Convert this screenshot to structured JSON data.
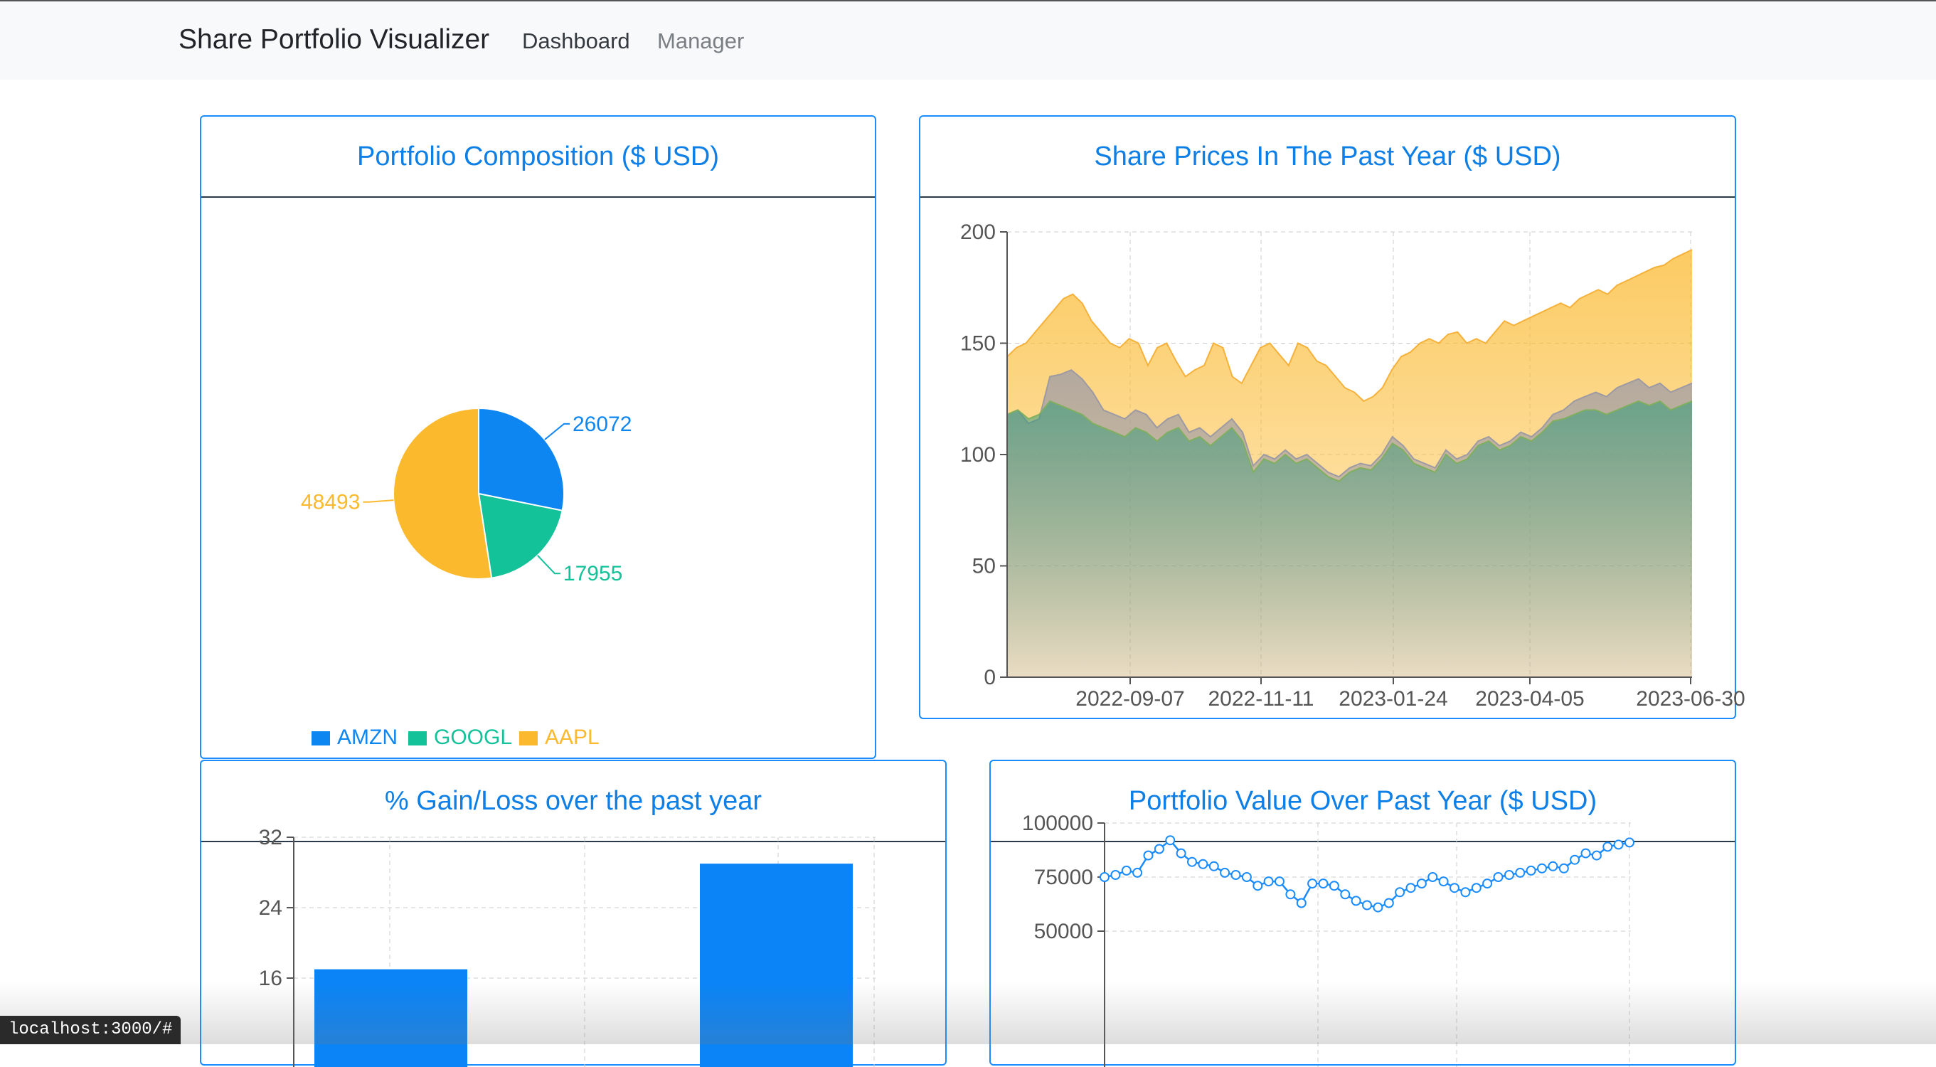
{
  "nav": {
    "brand": "Share Portfolio Visualizer",
    "links": [
      "Dashboard",
      "Manager"
    ]
  },
  "cards": {
    "composition": {
      "title": "Portfolio Composition ($ USD)"
    },
    "prices": {
      "title": "Share Prices In The Past Year ($ USD)"
    },
    "gain": {
      "title": "% Gain/Loss over the past year"
    },
    "value": {
      "title": "Portfolio Value Over Past Year ($ USD)"
    }
  },
  "status_url": "localhost:3000/#",
  "colors": {
    "primary": "#007bff",
    "amzn": "#0d86f2",
    "googl": "#14c29a",
    "aapl": "#fbb92e",
    "title": "#0d7fe6"
  },
  "chart_data": [
    {
      "type": "pie",
      "title": "Portfolio Composition ($ USD)",
      "labels": [
        "AMZN",
        "GOOGL",
        "AAPL"
      ],
      "values": [
        26072,
        17955,
        48493
      ],
      "legend": "bottom"
    },
    {
      "type": "area",
      "title": "Share Prices In The Past Year ($ USD)",
      "x_tick_labels": [
        "2022-09-07",
        "2022-11-11",
        "2023-01-24",
        "2023-04-05",
        "2023-06-30"
      ],
      "ylim": [
        0,
        200
      ],
      "y_ticks": [
        0,
        50,
        100,
        150,
        200
      ],
      "grid": true,
      "series": [
        {
          "values": [
            144,
            148,
            150,
            155,
            160,
            165,
            170,
            172,
            168,
            160,
            155,
            150,
            148,
            152,
            150,
            140,
            148,
            150,
            142,
            135,
            138,
            140,
            150,
            148,
            135,
            132,
            140,
            148,
            150,
            145,
            140,
            150,
            148,
            142,
            140,
            135,
            130,
            128,
            124,
            126,
            130,
            138,
            144,
            146,
            150,
            152,
            150,
            154,
            155,
            150,
            152,
            150,
            155,
            160,
            158,
            160,
            162,
            164,
            166,
            168,
            166,
            170,
            172,
            174,
            172,
            176,
            178,
            180,
            182,
            184,
            185,
            188,
            190,
            192
          ]
        },
        {
          "values": [
            118,
            120,
            114,
            116,
            135,
            136,
            138,
            134,
            128,
            120,
            118,
            116,
            120,
            118,
            112,
            116,
            118,
            110,
            112,
            108,
            112,
            116,
            110,
            95,
            100,
            98,
            102,
            98,
            100,
            96,
            92,
            90,
            94,
            96,
            95,
            100,
            108,
            104,
            98,
            96,
            94,
            102,
            98,
            100,
            106,
            108,
            104,
            106,
            110,
            108,
            112,
            118,
            120,
            124,
            126,
            128,
            126,
            130,
            132,
            134,
            130,
            132,
            128,
            130,
            132
          ]
        },
        {
          "values": [
            118,
            120,
            116,
            118,
            124,
            122,
            120,
            118,
            114,
            112,
            110,
            108,
            112,
            110,
            106,
            110,
            112,
            106,
            108,
            104,
            108,
            112,
            106,
            92,
            98,
            96,
            100,
            96,
            98,
            94,
            90,
            88,
            92,
            94,
            93,
            98,
            105,
            102,
            96,
            94,
            92,
            100,
            96,
            98,
            104,
            106,
            102,
            104,
            108,
            106,
            110,
            115,
            116,
            118,
            120,
            120,
            118,
            120,
            122,
            124,
            122,
            124,
            120,
            122,
            124
          ]
        }
      ]
    },
    {
      "type": "bar",
      "title": "% Gain/Loss over the past year",
      "y_ticks": [
        16,
        24,
        32
      ],
      "ylim": [
        0,
        32
      ],
      "values": [
        17,
        29
      ],
      "grid": true
    },
    {
      "type": "line",
      "title": "Portfolio Value Over Past Year ($ USD)",
      "y_ticks": [
        50000,
        75000,
        100000
      ],
      "grid": true,
      "values": [
        75000,
        76000,
        78000,
        77000,
        85000,
        88000,
        92000,
        86000,
        82000,
        81000,
        80000,
        77000,
        76000,
        75000,
        71000,
        73000,
        73000,
        67000,
        63000,
        72000,
        72000,
        71000,
        67000,
        64000,
        62000,
        61000,
        63000,
        68000,
        70000,
        72000,
        75000,
        73000,
        70000,
        68000,
        70000,
        72000,
        75000,
        76000,
        77000,
        78000,
        79000,
        80000,
        79000,
        83000,
        86000,
        85000,
        89000,
        90000,
        91000
      ]
    }
  ]
}
